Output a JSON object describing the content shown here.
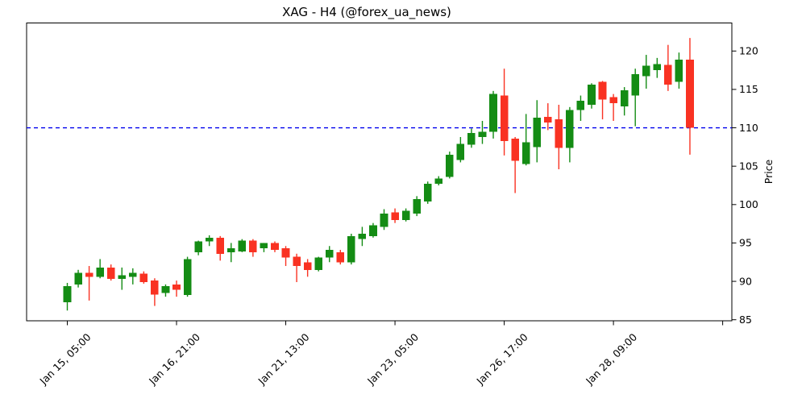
{
  "title": "XAG - H4 (@forex_ua_news)",
  "colors": {
    "up": "#148c14",
    "down": "#f93222",
    "threshold": "#0000ee",
    "axis": "#000000",
    "background": "#ffffff"
  },
  "chart_data": {
    "type": "candlestick",
    "title": "XAG - H4 (@forex_ua_news)",
    "symbol": "XAG",
    "timeframe": "H4",
    "source_handle": "@forex_ua_news",
    "ylabel": "Price",
    "ylabel_side": "right",
    "grid": false,
    "legend": null,
    "ylim": [
      84.4,
      123.5
    ],
    "y_ticks": [
      85,
      90,
      95,
      100,
      105,
      110,
      115,
      120
    ],
    "x_tick_indices": [
      0,
      10,
      20,
      30,
      40,
      50,
      60
    ],
    "x_tick_labels": [
      "Jan 15, 05:00",
      "Jan 16, 21:00",
      "Jan 21, 13:00",
      "Jan 23, 05:00",
      "Jan 26, 17:00",
      "Jan 28, 09:00",
      ""
    ],
    "threshold_line": {
      "price": 110,
      "color": "blue",
      "style": "dashed"
    },
    "ohlc_note": "each item is [open, high, low, close], index = H4 bar number",
    "candles_ohlc": [
      [
        87.3,
        89.8,
        86.2,
        89.4
      ],
      [
        89.6,
        91.5,
        89.2,
        91.1
      ],
      [
        91.1,
        92.0,
        87.5,
        90.6
      ],
      [
        90.6,
        92.9,
        90.4,
        91.8
      ],
      [
        91.8,
        92.2,
        90.1,
        90.3
      ],
      [
        90.3,
        91.8,
        88.9,
        90.8
      ],
      [
        90.6,
        91.7,
        89.6,
        91.1
      ],
      [
        91.0,
        91.3,
        89.7,
        89.9
      ],
      [
        90.1,
        90.4,
        86.8,
        88.3
      ],
      [
        88.5,
        89.6,
        88.0,
        89.4
      ],
      [
        89.6,
        90.1,
        88.0,
        88.9
      ],
      [
        88.2,
        93.2,
        88.0,
        92.9
      ],
      [
        93.8,
        95.3,
        93.4,
        95.2
      ],
      [
        95.2,
        96.0,
        94.6,
        95.7
      ],
      [
        95.7,
        95.9,
        92.7,
        93.6
      ],
      [
        93.8,
        95.0,
        92.5,
        94.3
      ],
      [
        93.9,
        95.5,
        93.8,
        95.3
      ],
      [
        95.3,
        95.5,
        93.2,
        93.8
      ],
      [
        94.3,
        95.0,
        93.8,
        95.0
      ],
      [
        95.0,
        95.2,
        93.8,
        94.1
      ],
      [
        94.3,
        94.6,
        92.0,
        93.1
      ],
      [
        93.2,
        93.6,
        89.9,
        92.0
      ],
      [
        92.5,
        92.9,
        90.6,
        91.5
      ],
      [
        91.5,
        93.2,
        91.3,
        93.1
      ],
      [
        93.1,
        94.6,
        92.5,
        94.1
      ],
      [
        93.8,
        94.1,
        92.2,
        92.5
      ],
      [
        92.5,
        96.2,
        92.2,
        95.9
      ],
      [
        95.5,
        97.1,
        94.6,
        96.2
      ],
      [
        95.9,
        97.6,
        95.7,
        97.3
      ],
      [
        97.1,
        99.4,
        96.7,
        98.8
      ],
      [
        99.0,
        99.5,
        97.6,
        98.0
      ],
      [
        98.0,
        99.5,
        97.8,
        99.2
      ],
      [
        98.8,
        101.1,
        98.5,
        100.7
      ],
      [
        100.4,
        103.0,
        100.1,
        102.7
      ],
      [
        102.7,
        103.7,
        102.5,
        103.4
      ],
      [
        103.6,
        106.9,
        103.4,
        106.5
      ],
      [
        105.8,
        108.8,
        105.5,
        107.9
      ],
      [
        107.8,
        109.9,
        107.4,
        109.3
      ],
      [
        108.8,
        110.9,
        107.9,
        109.5
      ],
      [
        109.5,
        114.8,
        108.6,
        114.4
      ],
      [
        114.2,
        117.7,
        106.4,
        108.3
      ],
      [
        108.6,
        108.8,
        101.5,
        105.7
      ],
      [
        105.3,
        111.8,
        105.1,
        108.1
      ],
      [
        107.5,
        113.6,
        105.5,
        111.3
      ],
      [
        111.4,
        113.2,
        109.7,
        110.7
      ],
      [
        111.1,
        113.0,
        104.6,
        107.4
      ],
      [
        107.4,
        112.7,
        105.5,
        112.3
      ],
      [
        112.3,
        114.2,
        110.9,
        113.5
      ],
      [
        113.0,
        115.8,
        112.5,
        115.6
      ],
      [
        116.0,
        116.1,
        111.1,
        113.7
      ],
      [
        114.0,
        114.4,
        110.9,
        113.2
      ],
      [
        112.8,
        115.3,
        111.6,
        114.9
      ],
      [
        114.2,
        117.7,
        110.2,
        117.0
      ],
      [
        116.7,
        119.5,
        115.1,
        118.1
      ],
      [
        117.5,
        119.1,
        116.5,
        118.3
      ],
      [
        118.2,
        120.8,
        114.8,
        115.6
      ],
      [
        116.0,
        119.8,
        115.1,
        118.9
      ],
      [
        118.9,
        121.7,
        106.5,
        110.0
      ]
    ]
  }
}
